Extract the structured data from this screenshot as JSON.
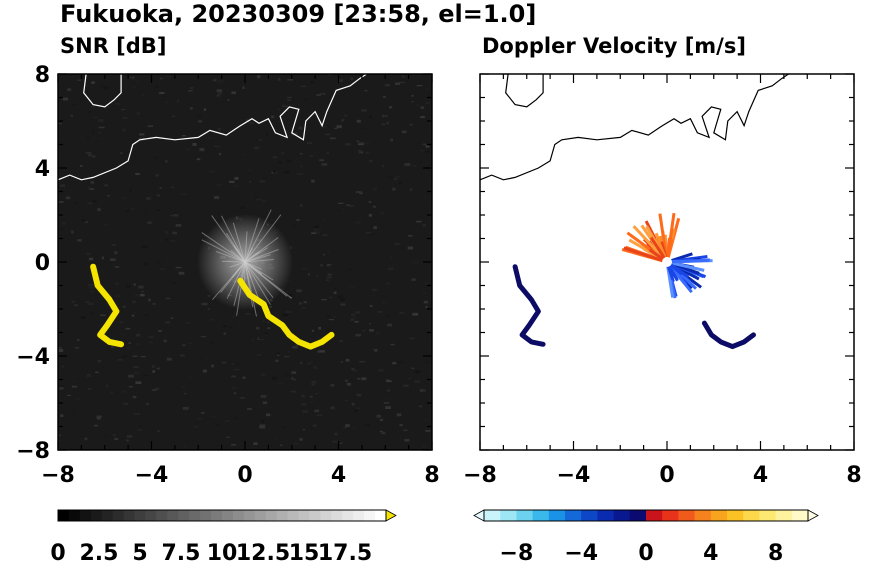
{
  "title": "Fukuoka, 20230309 [23:58, el=1.0]",
  "colors": {
    "snr_echo": "#f5e400",
    "coast": "#ffffff",
    "coast_right": "#000000",
    "background_left": "#1a1a1a"
  },
  "chart_data": [
    {
      "type": "heatmap",
      "title": "SNR [dB]",
      "xlim": [
        -8,
        8
      ],
      "ylim": [
        -8,
        8
      ],
      "x_ticks": [
        "−8",
        "−4",
        "0",
        "4",
        "8"
      ],
      "y_ticks": [
        "8",
        "4",
        "0",
        "−4",
        "−8"
      ],
      "colorbar": {
        "min": 0,
        "max": 20,
        "extend": "max",
        "tick_labels": [
          "0",
          "2.5",
          "5",
          "7.5",
          "10",
          "12.5",
          "15",
          "17.5"
        ],
        "tick_values": [
          0,
          2.5,
          5,
          7.5,
          10,
          12.5,
          15,
          17.5
        ]
      },
      "echo_bands": [
        {
          "name": "west",
          "points": [
            [
              -6.5,
              -0.2
            ],
            [
              -6.3,
              -1.0
            ],
            [
              -5.8,
              -1.6
            ],
            [
              -5.5,
              -2.1
            ],
            [
              -5.9,
              -2.7
            ],
            [
              -6.2,
              -3.1
            ],
            [
              -5.8,
              -3.4
            ],
            [
              -5.3,
              -3.5
            ]
          ]
        },
        {
          "name": "southeast",
          "points": [
            [
              -0.2,
              -0.8
            ],
            [
              0.2,
              -1.4
            ],
            [
              0.8,
              -1.8
            ],
            [
              1.0,
              -2.3
            ],
            [
              1.6,
              -2.7
            ],
            [
              1.9,
              -3.1
            ],
            [
              2.3,
              -3.4
            ],
            [
              2.8,
              -3.6
            ],
            [
              3.3,
              -3.4
            ],
            [
              3.7,
              -3.1
            ]
          ]
        }
      ]
    },
    {
      "type": "heatmap",
      "title": "Doppler Velocity [m/s]",
      "xlim": [
        -8,
        8
      ],
      "ylim": [
        -8,
        8
      ],
      "x_ticks": [
        "−8",
        "−4",
        "0",
        "4",
        "8"
      ],
      "colorbar": {
        "min": -10,
        "max": 10,
        "extend": "both",
        "tick_labels": [
          "−8",
          "−4",
          "0",
          "4",
          "8"
        ],
        "tick_values": [
          -8,
          -4,
          0,
          4,
          8
        ]
      },
      "echo_bands": [
        {
          "name": "west",
          "points": [
            [
              -6.5,
              -0.2
            ],
            [
              -6.3,
              -1.0
            ],
            [
              -5.8,
              -1.6
            ],
            [
              -5.5,
              -2.1
            ],
            [
              -5.9,
              -2.7
            ],
            [
              -6.2,
              -3.1
            ],
            [
              -5.8,
              -3.4
            ],
            [
              -5.3,
              -3.5
            ]
          ]
        },
        {
          "name": "southeast",
          "points": [
            [
              1.6,
              -2.6
            ],
            [
              1.9,
              -3.1
            ],
            [
              2.3,
              -3.4
            ],
            [
              2.8,
              -3.6
            ],
            [
              3.3,
              -3.4
            ],
            [
              3.7,
              -3.1
            ]
          ]
        }
      ]
    }
  ],
  "coastline": [
    [
      -8,
      3.5
    ],
    [
      -7.5,
      3.7
    ],
    [
      -7.0,
      3.5
    ],
    [
      -6.5,
      3.6
    ],
    [
      -5.5,
      4.0
    ],
    [
      -5.0,
      4.3
    ],
    [
      -4.8,
      5.0
    ],
    [
      -4.5,
      5.2
    ],
    [
      -3.8,
      5.3
    ],
    [
      -3.0,
      5.2
    ],
    [
      -2.0,
      5.3
    ],
    [
      -1.5,
      5.6
    ],
    [
      -0.8,
      5.4
    ],
    [
      -0.2,
      5.8
    ],
    [
      0.3,
      6.1
    ],
    [
      0.6,
      5.9
    ],
    [
      1.0,
      6.1
    ],
    [
      1.3,
      5.5
    ],
    [
      1.8,
      5.3
    ],
    [
      1.5,
      6.2
    ],
    [
      1.9,
      6.6
    ],
    [
      2.3,
      6.5
    ],
    [
      2.0,
      5.5
    ],
    [
      2.5,
      5.2
    ],
    [
      2.6,
      6.0
    ],
    [
      3.0,
      6.4
    ],
    [
      3.3,
      5.8
    ],
    [
      3.5,
      6.4
    ],
    [
      3.9,
      7.3
    ],
    [
      4.5,
      7.5
    ],
    [
      4.9,
      7.8
    ],
    [
      5.2,
      8.0
    ]
  ],
  "island": [
    [
      -6.8,
      8.0
    ],
    [
      -6.9,
      7.2
    ],
    [
      -6.5,
      6.7
    ],
    [
      -6.0,
      6.6
    ],
    [
      -5.6,
      6.9
    ],
    [
      -5.3,
      7.2
    ],
    [
      -5.3,
      8.0
    ]
  ]
}
